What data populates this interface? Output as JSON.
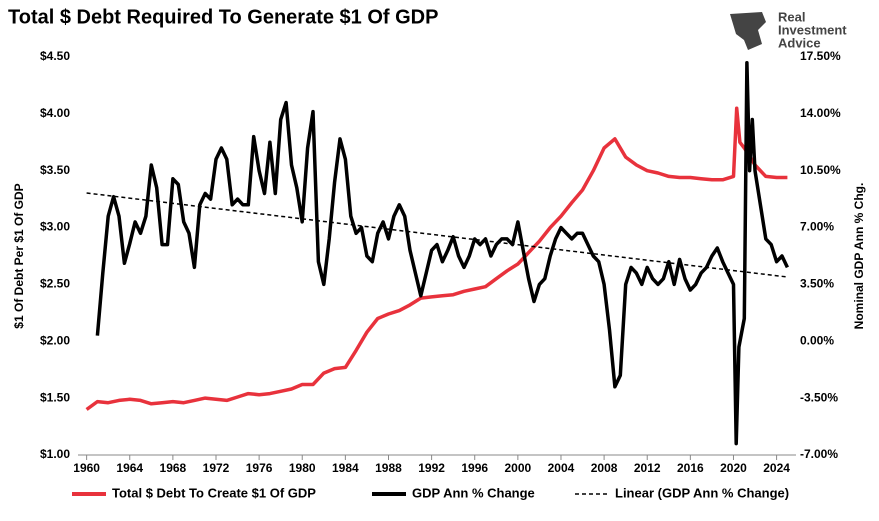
{
  "chart_data": {
    "type": "line",
    "title": "Total $ Debt Required To Generate $1 Of GDP",
    "logo": [
      "Real",
      "Investment",
      "Advice"
    ],
    "ylabel": "$1 Of Debt Per $1 Of GDP",
    "y2label": "Nominal GDP Ann % Chg.",
    "xlim": [
      1959.2,
      2025.8
    ],
    "xticks": [
      1960,
      1964,
      1968,
      1972,
      1976,
      1980,
      1984,
      1988,
      1992,
      1996,
      2000,
      2004,
      2008,
      2012,
      2016,
      2020,
      2024
    ],
    "ylim": [
      1.0,
      4.5
    ],
    "yticks": [
      {
        "value": 1.0,
        "label": "$1.00"
      },
      {
        "value": 1.5,
        "label": "$1.50"
      },
      {
        "value": 2.0,
        "label": "$2.00"
      },
      {
        "value": 2.5,
        "label": "$2.50"
      },
      {
        "value": 3.0,
        "label": "$3.00"
      },
      {
        "value": 3.5,
        "label": "$3.50"
      },
      {
        "value": 4.0,
        "label": "$4.00"
      },
      {
        "value": 4.5,
        "label": "$4.50"
      }
    ],
    "y2lim": [
      -7.0,
      17.5
    ],
    "y2ticks": [
      {
        "value": -7.0,
        "label": "-7.00%"
      },
      {
        "value": -3.5,
        "label": "-3.50%"
      },
      {
        "value": 0.0,
        "label": "0.00%"
      },
      {
        "value": 3.5,
        "label": "3.50%"
      },
      {
        "value": 7.0,
        "label": "7.00%"
      },
      {
        "value": 10.5,
        "label": "10.50%"
      },
      {
        "value": 14.0,
        "label": "14.00%"
      },
      {
        "value": 17.5,
        "label": "17.50%"
      }
    ],
    "legend": "bottom",
    "series": [
      {
        "name": "Total $ Debt To Create $1 Of GDP",
        "color": "#e8323c",
        "axis": "y",
        "width": 3.5,
        "dash": false,
        "x": [
          1960,
          1961,
          1962,
          1963,
          1964,
          1965,
          1966,
          1967,
          1968,
          1969,
          1970,
          1971,
          1972,
          1973,
          1974,
          1975,
          1976,
          1977,
          1978,
          1979,
          1980,
          1981,
          1982,
          1983,
          1984,
          1985,
          1986,
          1987,
          1988,
          1989,
          1990,
          1991,
          1992,
          1993,
          1994,
          1995,
          1996,
          1997,
          1998,
          1999,
          2000,
          2001,
          2002,
          2003,
          2004,
          2005,
          2006,
          2007,
          2008,
          2009,
          2010,
          2011,
          2012,
          2013,
          2014,
          2015,
          2016,
          2017,
          2018,
          2019,
          2020,
          2020.3,
          2020.6,
          2021,
          2022,
          2023,
          2024,
          2025
        ],
        "values": [
          1.4,
          1.47,
          1.46,
          1.48,
          1.49,
          1.48,
          1.45,
          1.46,
          1.47,
          1.46,
          1.48,
          1.5,
          1.49,
          1.48,
          1.51,
          1.54,
          1.53,
          1.54,
          1.56,
          1.58,
          1.62,
          1.62,
          1.72,
          1.76,
          1.77,
          1.92,
          2.08,
          2.2,
          2.24,
          2.27,
          2.32,
          2.38,
          2.39,
          2.4,
          2.41,
          2.44,
          2.46,
          2.48,
          2.55,
          2.62,
          2.68,
          2.78,
          2.88,
          3.0,
          3.1,
          3.22,
          3.33,
          3.5,
          3.7,
          3.78,
          3.62,
          3.55,
          3.5,
          3.48,
          3.45,
          3.44,
          3.44,
          3.43,
          3.42,
          3.42,
          3.45,
          4.05,
          3.75,
          3.7,
          3.55,
          3.45,
          3.44,
          3.44
        ]
      },
      {
        "name": "GDP Ann % Change",
        "color": "#000000",
        "axis": "y2",
        "width": 3.5,
        "dash": false,
        "x": [
          1961,
          1961.5,
          1962,
          1962.5,
          1963,
          1963.5,
          1964,
          1964.5,
          1965,
          1965.5,
          1966,
          1966.5,
          1967,
          1967.5,
          1968,
          1968.5,
          1969,
          1969.5,
          1970,
          1970.5,
          1971,
          1971.5,
          1972,
          1972.5,
          1973,
          1973.5,
          1974,
          1974.5,
          1975,
          1975.5,
          1976,
          1976.5,
          1977,
          1977.5,
          1978,
          1978.5,
          1979,
          1979.5,
          1980,
          1980.5,
          1981,
          1981.5,
          1982,
          1982.5,
          1983,
          1983.5,
          1984,
          1984.5,
          1985,
          1985.5,
          1986,
          1986.5,
          1987,
          1987.5,
          1988,
          1988.5,
          1989,
          1989.5,
          1990,
          1990.5,
          1991,
          1991.5,
          1992,
          1992.5,
          1993,
          1993.5,
          1994,
          1994.5,
          1995,
          1995.5,
          1996,
          1996.5,
          1997,
          1997.5,
          1998,
          1998.5,
          1999,
          1999.5,
          2000,
          2000.5,
          2001,
          2001.5,
          2002,
          2002.5,
          2003,
          2003.5,
          2004,
          2004.5,
          2005,
          2005.5,
          2006,
          2006.5,
          2007,
          2007.5,
          2008,
          2008.5,
          2009,
          2009.5,
          2010,
          2010.5,
          2011,
          2011.5,
          2012,
          2012.5,
          2013,
          2013.5,
          2014,
          2014.5,
          2015,
          2015.5,
          2016,
          2016.5,
          2017,
          2017.5,
          2018,
          2018.5,
          2019,
          2019.5,
          2020,
          2020.25,
          2020.5,
          2021,
          2021.25,
          2021.5,
          2021.75,
          2022,
          2022.5,
          2023,
          2023.5,
          2024,
          2024.5,
          2025
        ],
        "values": [
          0.35,
          4.2,
          7.7,
          8.9,
          7.7,
          4.8,
          6.0,
          7.35,
          6.65,
          7.7,
          10.85,
          9.45,
          5.95,
          5.95,
          10.0,
          9.65,
          7.35,
          6.65,
          4.55,
          8.4,
          9.1,
          8.75,
          11.2,
          11.9,
          11.2,
          8.4,
          8.75,
          8.4,
          8.4,
          12.6,
          10.5,
          9.1,
          12.25,
          9.1,
          13.65,
          14.7,
          10.85,
          9.45,
          7.35,
          11.9,
          14.14,
          4.9,
          3.5,
          6.3,
          9.8,
          12.46,
          11.2,
          7.7,
          6.65,
          7.0,
          5.25,
          4.9,
          6.65,
          7.35,
          6.3,
          7.7,
          8.4,
          7.7,
          5.6,
          4.2,
          2.8,
          4.2,
          5.6,
          5.95,
          4.9,
          5.6,
          6.44,
          5.25,
          4.55,
          5.25,
          6.3,
          5.95,
          6.3,
          5.25,
          5.95,
          6.3,
          6.3,
          5.95,
          7.35,
          5.6,
          3.85,
          2.45,
          3.5,
          3.85,
          5.25,
          6.3,
          7.0,
          6.65,
          6.3,
          6.65,
          6.65,
          5.95,
          5.25,
          4.9,
          3.5,
          0.7,
          -2.8,
          -2.1,
          3.5,
          4.55,
          4.2,
          3.5,
          4.55,
          3.85,
          3.5,
          3.85,
          4.9,
          3.5,
          5.04,
          3.85,
          3.15,
          3.5,
          4.2,
          4.55,
          5.25,
          5.74,
          4.9,
          4.2,
          3.5,
          -6.3,
          -0.35,
          1.4,
          17.15,
          10.5,
          13.65,
          10.5,
          8.4,
          6.3,
          5.95,
          4.9,
          5.25,
          4.55
        ]
      },
      {
        "name": "Linear (GDP Ann % Change)",
        "color": "#000000",
        "axis": "y2",
        "width": 1.5,
        "dash": true,
        "x": [
          1960,
          2025
        ],
        "values": [
          9.13,
          3.96
        ]
      }
    ]
  }
}
